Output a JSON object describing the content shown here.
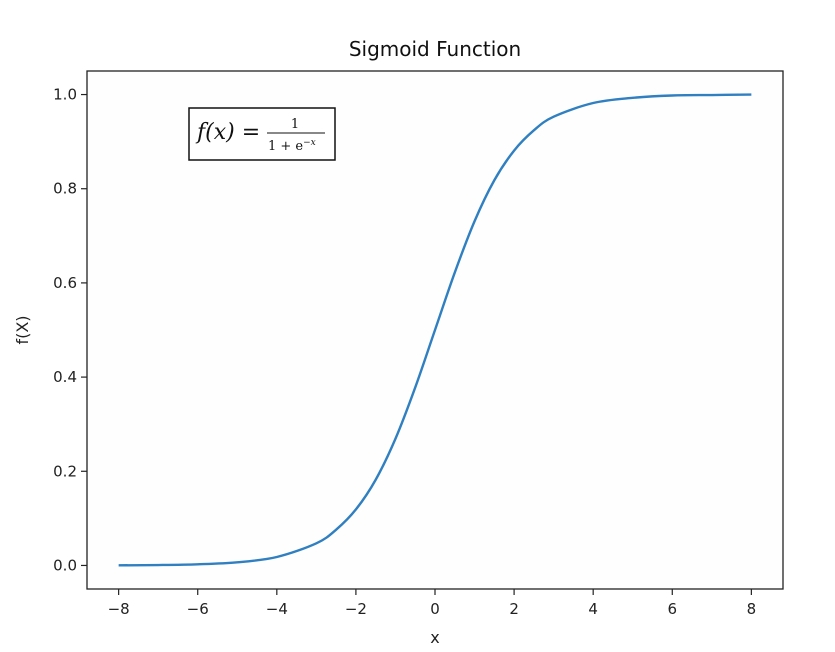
{
  "chart_data": {
    "type": "line",
    "title": "Sigmoid Function",
    "xlabel": "x",
    "ylabel": "f(X)",
    "xlim": [
      -8.8,
      8.8
    ],
    "ylim": [
      -0.05,
      1.05
    ],
    "x_ticks": [
      -8,
      -6,
      -4,
      -2,
      0,
      2,
      4,
      6,
      8
    ],
    "x_tick_labels": [
      "−8",
      "−6",
      "−4",
      "−2",
      "0",
      "2",
      "4",
      "6",
      "8"
    ],
    "y_ticks": [
      0.0,
      0.2,
      0.4,
      0.6,
      0.8,
      1.0
    ],
    "y_tick_labels": [
      "0.0",
      "0.2",
      "0.4",
      "0.6",
      "0.8",
      "1.0"
    ],
    "grid": false,
    "series": [
      {
        "color": "#2f7fc1",
        "x": [
          -8,
          -7,
          -6,
          -5,
          -4,
          -3,
          -2.5,
          -2,
          -1.5,
          -1,
          -0.5,
          0,
          0.5,
          1,
          1.5,
          2,
          2.5,
          3,
          4,
          5,
          6,
          7,
          8
        ],
        "y": [
          0.0003,
          0.0009,
          0.0025,
          0.0067,
          0.018,
          0.047,
          0.076,
          0.119,
          0.182,
          0.269,
          0.378,
          0.5,
          0.622,
          0.731,
          0.818,
          0.881,
          0.924,
          0.953,
          0.982,
          0.993,
          0.998,
          0.999,
          1.0
        ]
      }
    ],
    "annotation": {
      "formula_lhs": "f(x) =",
      "numerator": "1",
      "denominator_base": "1 + e",
      "denominator_exp": "−x"
    }
  }
}
